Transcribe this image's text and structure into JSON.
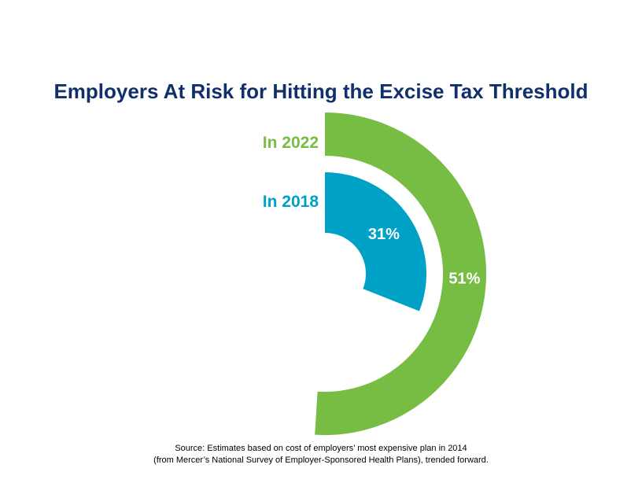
{
  "chart_data": {
    "type": "pie",
    "title": "Employers At Risk for Hitting the Excise Tax Threshold",
    "series": [
      {
        "name": "In 2022",
        "value": 51,
        "label": "51%",
        "color": "#77bc43"
      },
      {
        "name": "In 2018",
        "value": 31,
        "label": "31%",
        "color": "#00a1c6"
      }
    ],
    "unit": "%",
    "legend": "left of rings"
  },
  "source": {
    "line1": "Source:  Estimates based on cost of employers’ most expensive plan in 2014",
    "line2": "(from Mercer’s National Survey of Employer-Sponsored Health Plans), trended forward."
  }
}
